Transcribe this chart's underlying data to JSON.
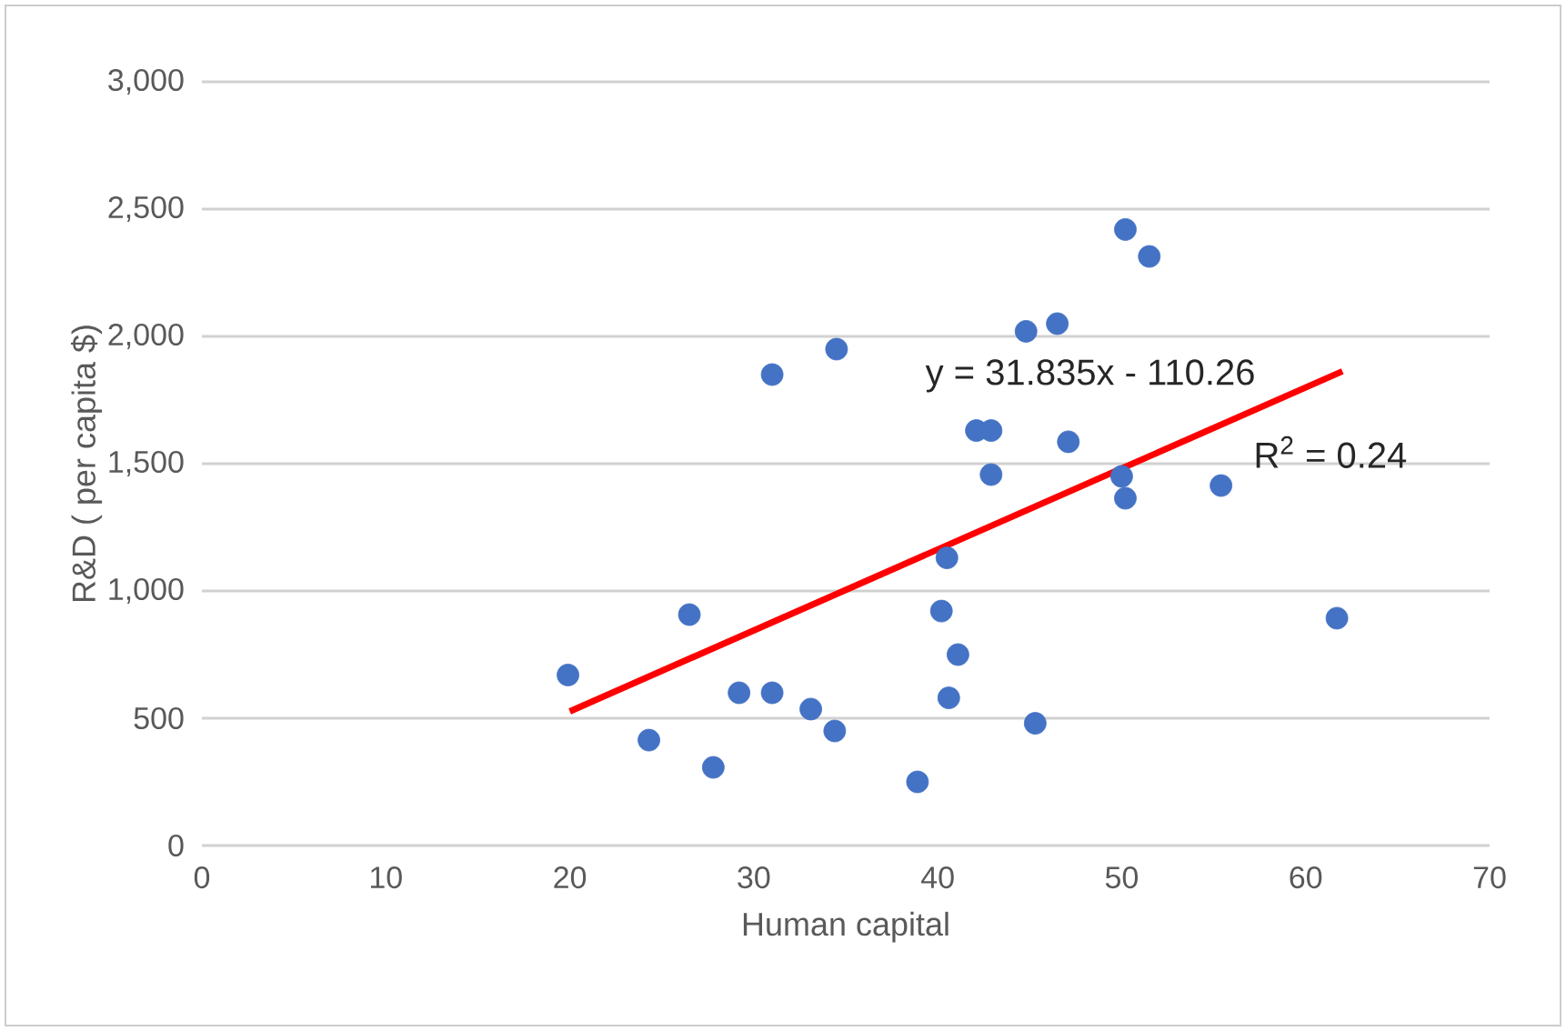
{
  "chart_data": {
    "type": "scatter",
    "xlabel": "Human capital",
    "ylabel": "R&D ( per capita $)",
    "xlim": [
      0,
      70
    ],
    "xticks": [
      0,
      10,
      20,
      30,
      40,
      50,
      60,
      70
    ],
    "ylim": [
      0,
      3000
    ],
    "yticks": [
      0,
      500,
      {
        "value": 1000,
        "label": "1,000"
      },
      {
        "value": 1500,
        "label": "1,500"
      },
      {
        "value": 2000,
        "label": "2,000"
      },
      {
        "value": 2500,
        "label": "2,500"
      },
      {
        "value": 3000,
        "label": "3,000"
      }
    ],
    "grid": "y",
    "marker": "circle",
    "series": [
      {
        "color": "#4472c4",
        "x": [
          19.9,
          24.3,
          26.5,
          27.8,
          29.2,
          31.0,
          31.0,
          33.1,
          34.5,
          34.4,
          38.9,
          40.2,
          40.5,
          40.6,
          41.1,
          42.1,
          42.9,
          42.9,
          45.3,
          44.8,
          46.5,
          47.1,
          50.0,
          50.2,
          50.2,
          51.5,
          55.4,
          61.7
        ],
        "values": [
          670,
          414,
          907,
          307,
          600,
          600,
          1850,
          536,
          1950,
          450,
          250,
          921,
          1130,
          580,
          750,
          1630,
          1630,
          1457,
          480,
          2020,
          2050,
          1586,
          1450,
          1364,
          2420,
          2314,
          1414,
          893
        ]
      },
      {
        "type": "line",
        "marker": "none",
        "color": "#ff0000",
        "x": [
          20,
          62
        ],
        "values": [
          527,
          1863
        ]
      }
    ],
    "annotations": [
      "y = 31.835x - 110.26",
      "R$^{2}$ = 0.24"
    ]
  }
}
